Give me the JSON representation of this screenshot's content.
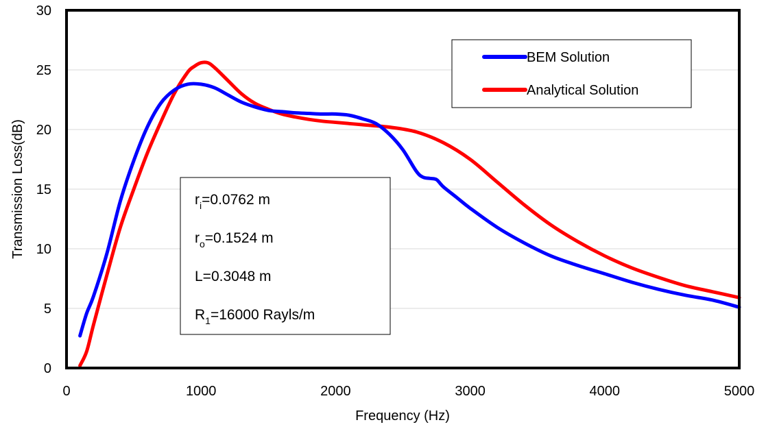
{
  "chart_data": {
    "type": "line",
    "title": "",
    "xlabel": "Frequency (Hz)",
    "ylabel": "Transmission Loss(dB)",
    "xlim": [
      0,
      5000
    ],
    "ylim": [
      0,
      30
    ],
    "xticks": [
      "0",
      "1000",
      "2000",
      "3000",
      "4000",
      "5000"
    ],
    "yticks": [
      "0",
      "5",
      "10",
      "15",
      "20",
      "25",
      "30"
    ],
    "grid": "horizontal",
    "legend_position": "top-right",
    "series": [
      {
        "name": "BEM Solution",
        "color": "#0000ff",
        "x": [
          100,
          150,
          200,
          300,
          400,
          500,
          600,
          700,
          800,
          900,
          1000,
          1100,
          1200,
          1300,
          1400,
          1500,
          1600,
          1700,
          1800,
          1900,
          2000,
          2100,
          2200,
          2300,
          2400,
          2500,
          2600,
          2650,
          2700,
          2750,
          2800,
          2900,
          3000,
          3200,
          3400,
          3600,
          3800,
          4000,
          4200,
          4400,
          4600,
          4800,
          5000
        ],
        "y": [
          2.7,
          4.6,
          6.0,
          9.6,
          14.0,
          17.4,
          20.2,
          22.2,
          23.3,
          23.8,
          23.8,
          23.5,
          22.9,
          22.3,
          21.9,
          21.6,
          21.5,
          21.4,
          21.35,
          21.3,
          21.3,
          21.2,
          20.9,
          20.5,
          19.6,
          18.3,
          16.5,
          16.0,
          15.9,
          15.8,
          15.2,
          14.3,
          13.4,
          11.8,
          10.5,
          9.4,
          8.6,
          7.9,
          7.2,
          6.6,
          6.1,
          5.7,
          5.1
        ]
      },
      {
        "name": "Analytical Solution",
        "color": "#ff0000",
        "x": [
          100,
          150,
          200,
          300,
          400,
          500,
          600,
          700,
          800,
          900,
          950,
          1000,
          1050,
          1100,
          1200,
          1300,
          1400,
          1500,
          1600,
          1700,
          1800,
          1900,
          2000,
          2200,
          2400,
          2600,
          2800,
          3000,
          3200,
          3400,
          3600,
          3800,
          4000,
          4200,
          4400,
          4600,
          4800,
          5000
        ],
        "y": [
          0.2,
          1.4,
          3.6,
          7.8,
          11.8,
          15.0,
          18.0,
          20.6,
          23.0,
          24.8,
          25.3,
          25.6,
          25.6,
          25.2,
          24.1,
          23.0,
          22.2,
          21.7,
          21.3,
          21.05,
          20.85,
          20.7,
          20.6,
          20.4,
          20.2,
          19.8,
          18.9,
          17.5,
          15.6,
          13.7,
          12.0,
          10.6,
          9.4,
          8.4,
          7.6,
          6.9,
          6.4,
          5.9
        ]
      }
    ],
    "annotation_lines": [
      {
        "main": "r",
        "sub": "i",
        "rest": "=0.0762 m"
      },
      {
        "main": "r",
        "sub": "o",
        "rest": "=0.1524 m"
      },
      {
        "main": "L=0.3048 m",
        "sub": "",
        "rest": ""
      },
      {
        "main": "R",
        "sub": "1",
        "rest": "=16000 Rayls/m"
      }
    ]
  }
}
